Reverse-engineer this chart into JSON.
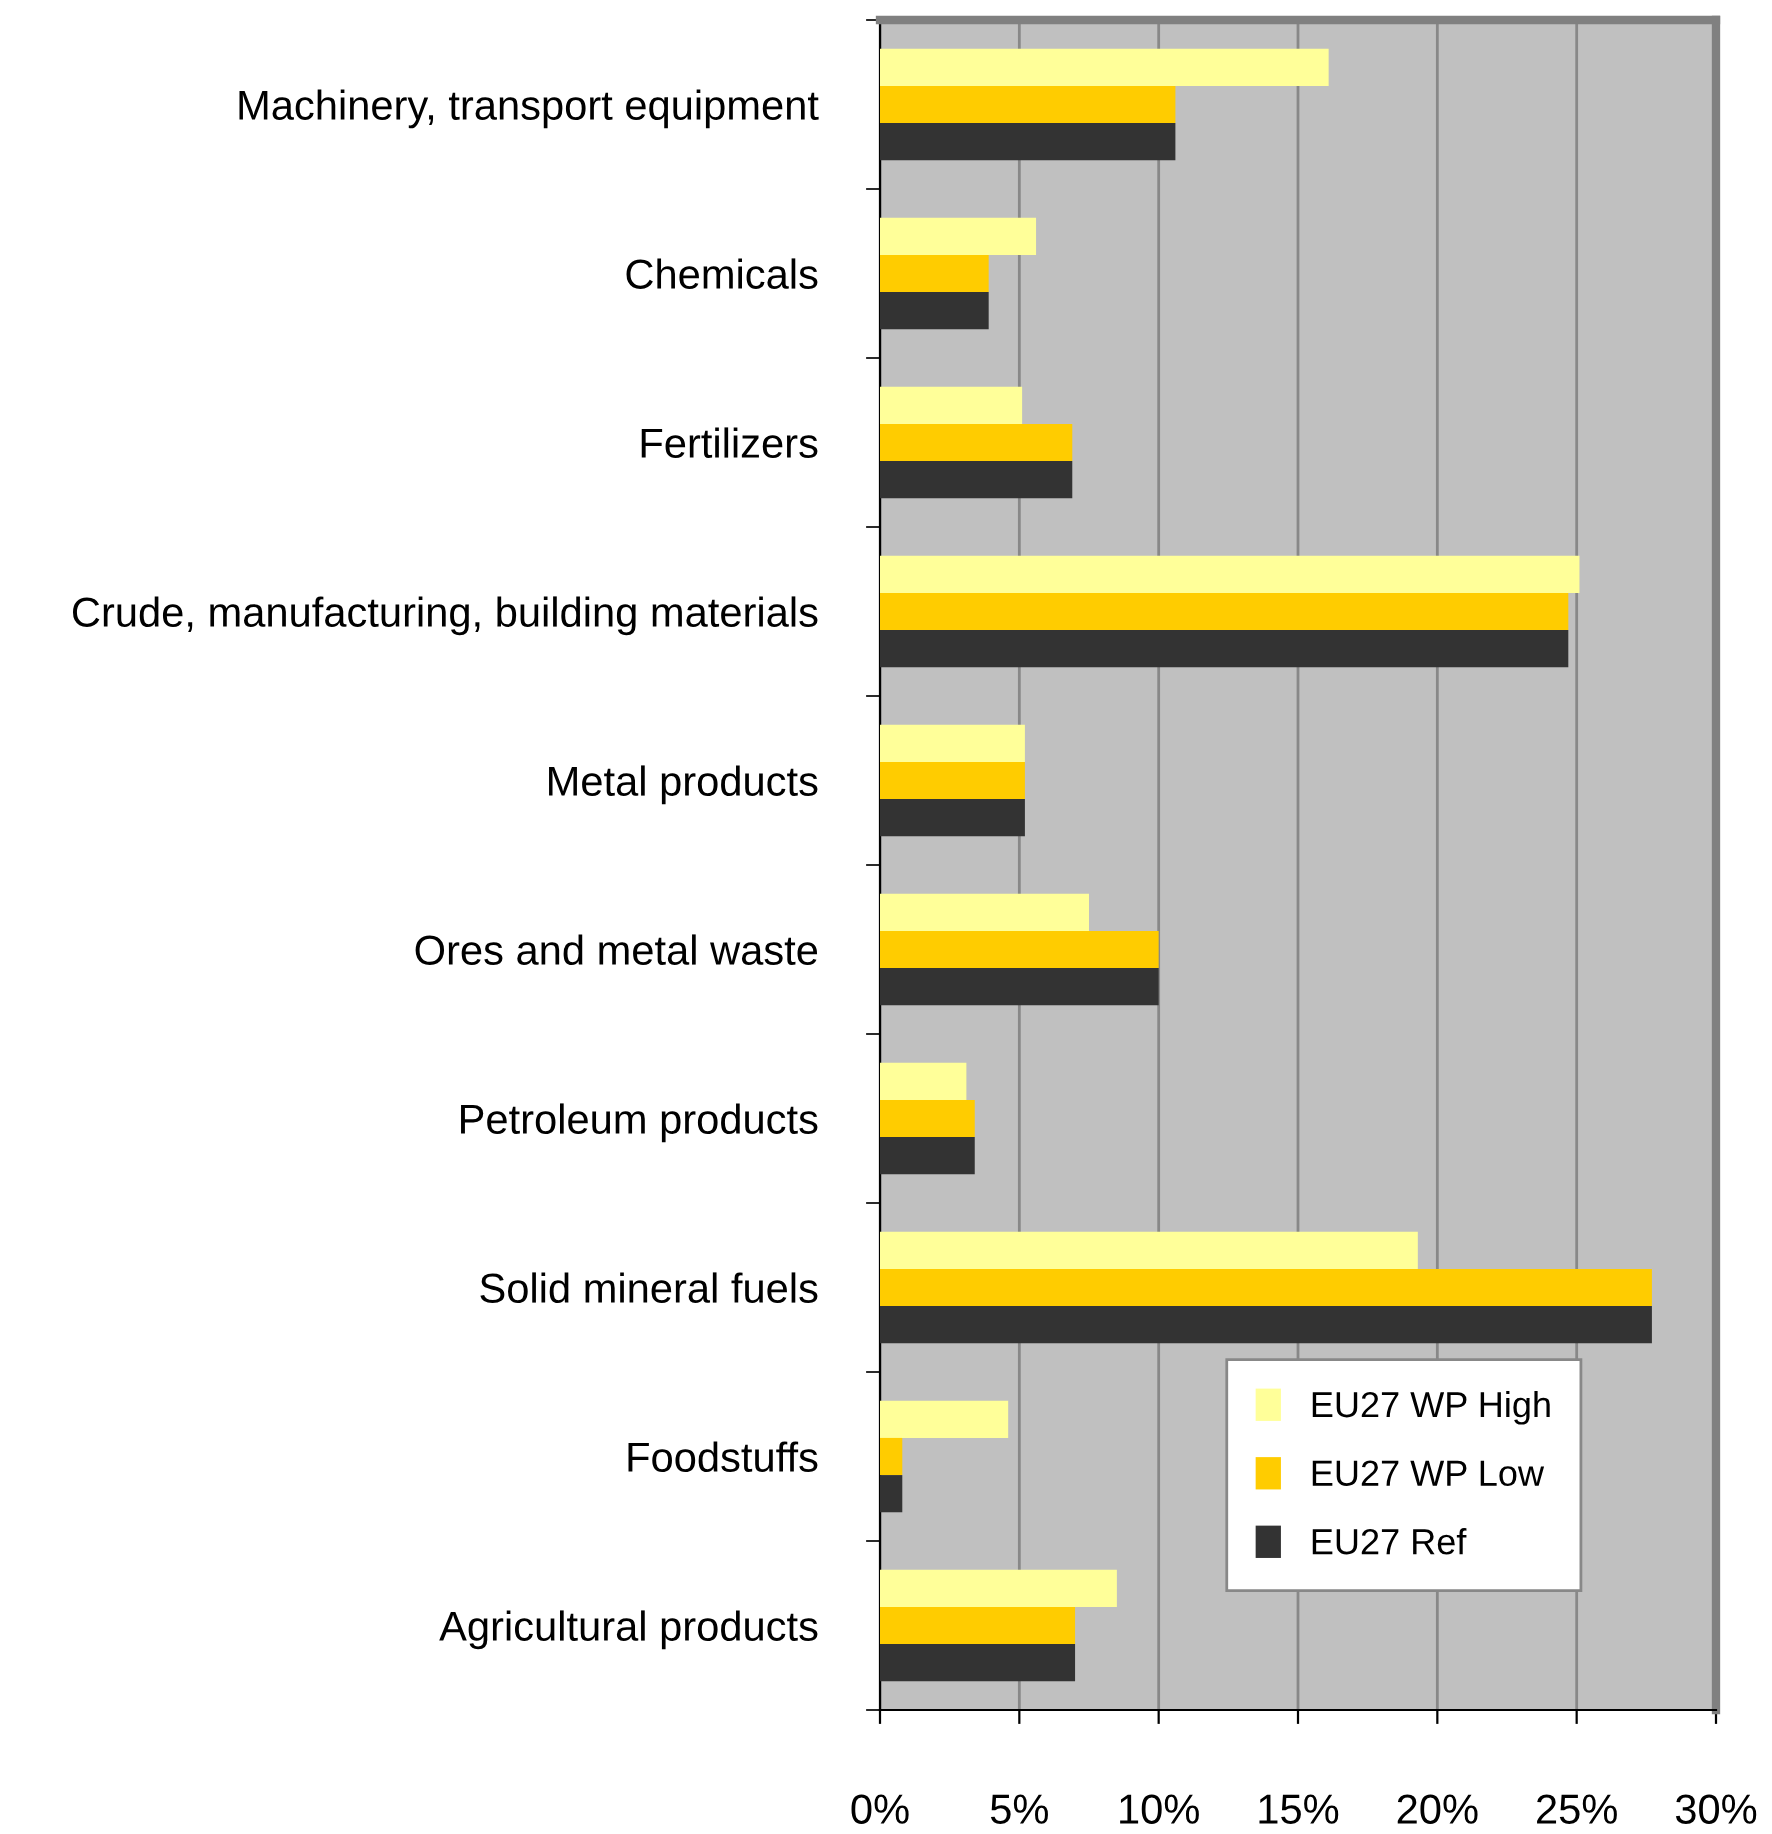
{
  "chart_data": {
    "type": "bar",
    "orientation": "horizontal",
    "categories": [
      "Machinery, transport equipment",
      "Chemicals",
      "Fertilizers",
      "Crude, manufacturing, building materials",
      "Metal products",
      "Ores and metal waste",
      "Petroleum products",
      "Solid mineral fuels",
      "Foodstuffs",
      "Agricultural products"
    ],
    "series": [
      {
        "name": "EU27 WP High",
        "color": "#ffff99",
        "values": [
          16.1,
          5.6,
          5.1,
          25.1,
          5.2,
          7.5,
          3.1,
          19.3,
          4.6,
          8.5
        ]
      },
      {
        "name": "EU27 WP Low",
        "color": "#ffcc00",
        "values": [
          10.6,
          3.9,
          6.9,
          24.7,
          5.2,
          10.0,
          3.4,
          27.7,
          0.8,
          7.0
        ]
      },
      {
        "name": "EU27 Ref",
        "color": "#333333",
        "values": [
          10.6,
          3.9,
          6.9,
          24.7,
          5.2,
          10.0,
          3.4,
          27.7,
          0.8,
          7.0
        ]
      }
    ],
    "xlim": [
      0,
      30
    ],
    "xticks": [
      {
        "value": 0,
        "label": "0%"
      },
      {
        "value": 5,
        "label": "5%"
      },
      {
        "value": 10,
        "label": "10%"
      },
      {
        "value": 15,
        "label": "15%"
      },
      {
        "value": 20,
        "label": "20%"
      },
      {
        "value": 25,
        "label": "25%"
      },
      {
        "value": 30,
        "label": "30%"
      }
    ],
    "grid": "x",
    "legend": "bottom right"
  }
}
